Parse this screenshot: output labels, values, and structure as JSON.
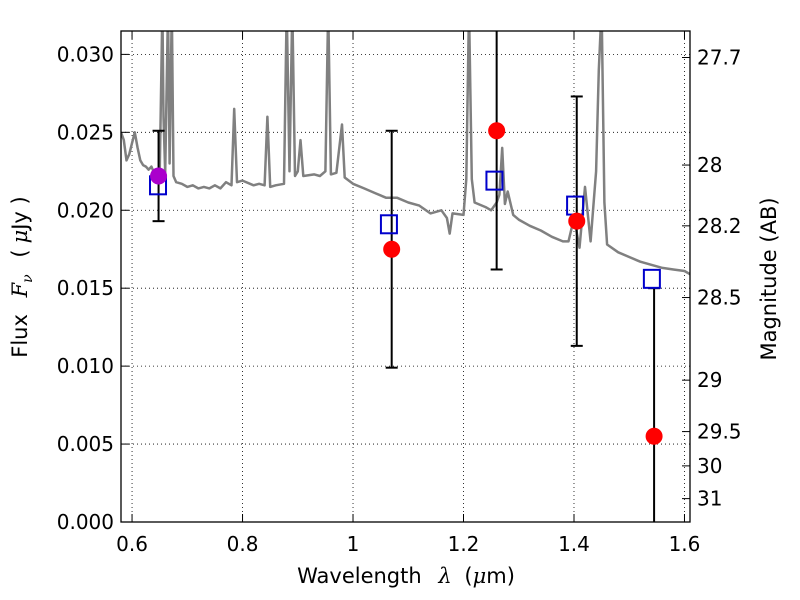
{
  "chart_data": {
    "type": "scatter",
    "xlabel_prefix": "Wavelength",
    "xlabel_symbol": "λ",
    "xlabel_unit_open": "(",
    "xlabel_unit_mu": "μ",
    "xlabel_unit_rest": "m)",
    "ylabel_prefix": "Flux",
    "ylabel_symbol": "F",
    "ylabel_subscript": "ν",
    "ylabel_unit_open": "(",
    "ylabel_unit_mu": "μ",
    "ylabel_unit_rest": "Jy )",
    "y2label": "Magnitude (AB)",
    "xlim": [
      0.58,
      1.61
    ],
    "ylim": [
      0.0,
      0.0315
    ],
    "grid": true,
    "grid_style": "dotted",
    "x_ticks": [
      0.6,
      0.8,
      1.0,
      1.2,
      1.4,
      1.6
    ],
    "x_tick_labels": [
      "0.6",
      "0.8",
      "1",
      "1.2",
      "1.4",
      "1.6"
    ],
    "y_ticks": [
      0.0,
      0.005,
      0.01,
      0.015,
      0.02,
      0.025,
      0.03
    ],
    "y_tick_labels": [
      "0.000",
      "0.005",
      "0.010",
      "0.015",
      "0.020",
      "0.025",
      "0.030"
    ],
    "mag_ticks": [
      {
        "label": "27.7",
        "flux": 0.0298
      },
      {
        "label": "28",
        "flux": 0.0229
      },
      {
        "label": "28.2",
        "flux": 0.019
      },
      {
        "label": "28.5",
        "flux": 0.0144
      },
      {
        "label": "29",
        "flux": 0.0091
      },
      {
        "label": "29.5",
        "flux": 0.0058
      },
      {
        "label": "30",
        "flux": 0.0036
      },
      {
        "label": "31",
        "flux": 0.0015
      }
    ],
    "series": [
      {
        "name": "model-spectrum",
        "kind": "line",
        "color": "#808080",
        "points": [
          [
            0.58,
            0.025
          ],
          [
            0.585,
            0.0245
          ],
          [
            0.59,
            0.0232
          ],
          [
            0.595,
            0.0236
          ],
          [
            0.6,
            0.0243
          ],
          [
            0.605,
            0.025
          ],
          [
            0.61,
            0.024
          ],
          [
            0.615,
            0.0232
          ],
          [
            0.62,
            0.0229
          ],
          [
            0.625,
            0.0228
          ],
          [
            0.63,
            0.0226
          ],
          [
            0.635,
            0.0228
          ],
          [
            0.64,
            0.0224
          ],
          [
            0.645,
            0.0225
          ],
          [
            0.65,
            0.0223
          ],
          [
            0.655,
            0.033
          ],
          [
            0.657,
            0.026
          ],
          [
            0.66,
            0.0224
          ],
          [
            0.665,
            0.033
          ],
          [
            0.668,
            0.023
          ],
          [
            0.672,
            0.033
          ],
          [
            0.675,
            0.0222
          ],
          [
            0.68,
            0.0218
          ],
          [
            0.69,
            0.0217
          ],
          [
            0.7,
            0.0215
          ],
          [
            0.71,
            0.0216
          ],
          [
            0.72,
            0.0214
          ],
          [
            0.73,
            0.0215
          ],
          [
            0.74,
            0.0214
          ],
          [
            0.75,
            0.0216
          ],
          [
            0.76,
            0.0214
          ],
          [
            0.77,
            0.0218
          ],
          [
            0.78,
            0.0216
          ],
          [
            0.785,
            0.0265
          ],
          [
            0.79,
            0.0218
          ],
          [
            0.8,
            0.0219
          ],
          [
            0.82,
            0.0216
          ],
          [
            0.83,
            0.0217
          ],
          [
            0.84,
            0.0216
          ],
          [
            0.845,
            0.026
          ],
          [
            0.85,
            0.0215
          ],
          [
            0.86,
            0.0216
          ],
          [
            0.875,
            0.0217
          ],
          [
            0.88,
            0.033
          ],
          [
            0.885,
            0.0225
          ],
          [
            0.89,
            0.033
          ],
          [
            0.895,
            0.0222
          ],
          [
            0.9,
            0.0225
          ],
          [
            0.905,
            0.0245
          ],
          [
            0.91,
            0.0222
          ],
          [
            0.93,
            0.0223
          ],
          [
            0.94,
            0.0222
          ],
          [
            0.95,
            0.0225
          ],
          [
            0.955,
            0.033
          ],
          [
            0.96,
            0.0223
          ],
          [
            0.97,
            0.0224
          ],
          [
            0.98,
            0.0255
          ],
          [
            0.985,
            0.0221
          ],
          [
            1.0,
            0.0217
          ],
          [
            1.02,
            0.0214
          ],
          [
            1.04,
            0.0211
          ],
          [
            1.06,
            0.0208
          ],
          [
            1.08,
            0.0208
          ],
          [
            1.1,
            0.0205
          ],
          [
            1.12,
            0.0203
          ],
          [
            1.14,
            0.0198
          ],
          [
            1.16,
            0.02
          ],
          [
            1.17,
            0.0195
          ],
          [
            1.175,
            0.0185
          ],
          [
            1.18,
            0.0198
          ],
          [
            1.2,
            0.0197
          ],
          [
            1.205,
            0.022
          ],
          [
            1.21,
            0.033
          ],
          [
            1.215,
            0.022
          ],
          [
            1.22,
            0.0205
          ],
          [
            1.24,
            0.0202
          ],
          [
            1.25,
            0.02
          ],
          [
            1.26,
            0.0205
          ],
          [
            1.265,
            0.021
          ],
          [
            1.27,
            0.024
          ],
          [
            1.275,
            0.0204
          ],
          [
            1.28,
            0.0212
          ],
          [
            1.29,
            0.0197
          ],
          [
            1.3,
            0.0194
          ],
          [
            1.32,
            0.019
          ],
          [
            1.34,
            0.0187
          ],
          [
            1.36,
            0.0183
          ],
          [
            1.38,
            0.018
          ],
          [
            1.39,
            0.018
          ],
          [
            1.4,
            0.0195
          ],
          [
            1.41,
            0.0176
          ],
          [
            1.42,
            0.0215
          ],
          [
            1.43,
            0.018
          ],
          [
            1.44,
            0.0225
          ],
          [
            1.445,
            0.029
          ],
          [
            1.45,
            0.033
          ],
          [
            1.455,
            0.0205
          ],
          [
            1.46,
            0.0178
          ],
          [
            1.48,
            0.0173
          ],
          [
            1.5,
            0.017
          ],
          [
            1.52,
            0.0167
          ],
          [
            1.54,
            0.0165
          ],
          [
            1.56,
            0.0163
          ],
          [
            1.58,
            0.0162
          ],
          [
            1.6,
            0.0161
          ],
          [
            1.61,
            0.0159
          ]
        ]
      },
      {
        "name": "observed",
        "kind": "points-with-errors",
        "color": "#ff0000",
        "points": [
          {
            "x": 0.648,
            "y": 0.0222,
            "yerr_low": 0.0193,
            "yerr_high": 0.0251
          },
          {
            "x": 1.07,
            "y": 0.0175,
            "yerr_low": 0.0099,
            "yerr_high": 0.0251
          },
          {
            "x": 1.26,
            "y": 0.0251,
            "yerr_low": 0.0162,
            "yerr_high": 0.032
          },
          {
            "x": 1.405,
            "y": 0.0193,
            "yerr_low": 0.0113,
            "yerr_high": 0.0273
          },
          {
            "x": 1.545,
            "y": 0.0055,
            "yerr_low": 0.0,
            "yerr_high": 0.015
          }
        ]
      },
      {
        "name": "model-photometry",
        "kind": "open-squares",
        "color": "#0000cc",
        "points": [
          {
            "x": 0.647,
            "y": 0.0216
          },
          {
            "x": 1.065,
            "y": 0.0191
          },
          {
            "x": 1.256,
            "y": 0.0219
          },
          {
            "x": 1.402,
            "y": 0.0203
          },
          {
            "x": 1.541,
            "y": 0.0156
          }
        ]
      }
    ]
  },
  "colors": {
    "spectrum": "#808080",
    "observed": "#ff0000",
    "photometry": "#0000cc",
    "overlap_point": "#aa00cc"
  }
}
